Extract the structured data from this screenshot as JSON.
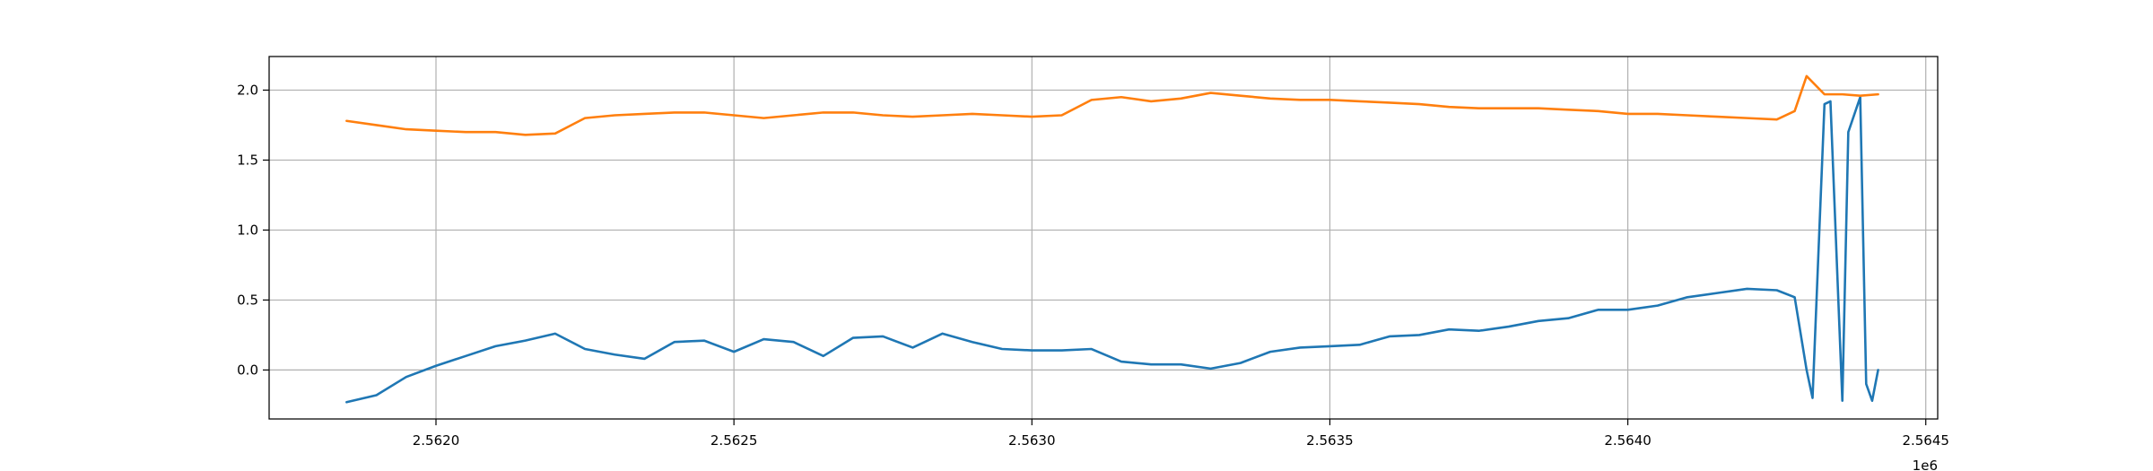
{
  "chart_data": {
    "type": "line",
    "title": "",
    "xlabel": "",
    "ylabel": "",
    "x_offset_label": "1e6",
    "xlim": [
      2.56172,
      2.56452
    ],
    "ylim": [
      -0.35,
      2.24
    ],
    "x_ticks": [
      2.562,
      2.5625,
      2.563,
      2.5635,
      2.564,
      2.5645
    ],
    "x_tick_labels": [
      "2.5620",
      "2.5625",
      "2.5630",
      "2.5635",
      "2.5640",
      "2.5645"
    ],
    "y_ticks": [
      0.0,
      0.5,
      1.0,
      1.5,
      2.0
    ],
    "y_tick_labels": [
      "0.0",
      "0.5",
      "1.0",
      "1.5",
      "2.0"
    ],
    "grid": true,
    "legend": "none",
    "series": [
      {
        "color": "#1f77b4",
        "x": [
          2.56185,
          2.5619,
          2.56195,
          2.562,
          2.56205,
          2.5621,
          2.56215,
          2.5622,
          2.56225,
          2.5623,
          2.56235,
          2.5624,
          2.56245,
          2.5625,
          2.56255,
          2.5626,
          2.56265,
          2.5627,
          2.56275,
          2.5628,
          2.56285,
          2.5629,
          2.56295,
          2.563,
          2.56305,
          2.5631,
          2.56315,
          2.5632,
          2.56325,
          2.5633,
          2.56335,
          2.5634,
          2.56345,
          2.5635,
          2.56355,
          2.5636,
          2.56365,
          2.5637,
          2.56375,
          2.5638,
          2.56385,
          2.5639,
          2.56395,
          2.564,
          2.56405,
          2.5641,
          2.56415,
          2.5642,
          2.56425,
          2.56428,
          2.5643,
          2.56431,
          2.56433,
          2.56434,
          2.56436,
          2.56437,
          2.56439,
          2.5644,
          2.56441,
          2.56442
        ],
        "y": [
          -0.23,
          -0.18,
          -0.05,
          0.03,
          0.1,
          0.17,
          0.21,
          0.26,
          0.15,
          0.11,
          0.08,
          0.2,
          0.21,
          0.13,
          0.22,
          0.2,
          0.1,
          0.23,
          0.24,
          0.16,
          0.26,
          0.2,
          0.15,
          0.14,
          0.14,
          0.15,
          0.06,
          0.04,
          0.04,
          0.01,
          0.05,
          0.13,
          0.16,
          0.17,
          0.18,
          0.24,
          0.25,
          0.29,
          0.28,
          0.31,
          0.35,
          0.37,
          0.43,
          0.43,
          0.46,
          0.52,
          0.55,
          0.58,
          0.57,
          0.52,
          0.0,
          -0.2,
          1.9,
          1.92,
          -0.22,
          1.7,
          1.95,
          -0.1,
          -0.22,
          0.0
        ]
      },
      {
        "color": "#ff7f0e",
        "x": [
          2.56185,
          2.5619,
          2.56195,
          2.562,
          2.56205,
          2.5621,
          2.56215,
          2.5622,
          2.56225,
          2.5623,
          2.56235,
          2.5624,
          2.56245,
          2.5625,
          2.56255,
          2.5626,
          2.56265,
          2.5627,
          2.56275,
          2.5628,
          2.56285,
          2.5629,
          2.56295,
          2.563,
          2.56305,
          2.5631,
          2.56315,
          2.5632,
          2.56325,
          2.5633,
          2.56335,
          2.5634,
          2.56345,
          2.5635,
          2.56355,
          2.5636,
          2.56365,
          2.5637,
          2.56375,
          2.5638,
          2.56385,
          2.5639,
          2.56395,
          2.564,
          2.56405,
          2.5641,
          2.56415,
          2.5642,
          2.56425,
          2.56428,
          2.5643,
          2.56433,
          2.56436,
          2.56439,
          2.56442
        ],
        "y": [
          1.78,
          1.75,
          1.72,
          1.71,
          1.7,
          1.7,
          1.68,
          1.69,
          1.8,
          1.82,
          1.83,
          1.84,
          1.84,
          1.82,
          1.8,
          1.82,
          1.84,
          1.84,
          1.82,
          1.81,
          1.82,
          1.83,
          1.82,
          1.81,
          1.82,
          1.93,
          1.95,
          1.92,
          1.94,
          1.98,
          1.96,
          1.94,
          1.93,
          1.93,
          1.92,
          1.91,
          1.9,
          1.88,
          1.87,
          1.87,
          1.87,
          1.86,
          1.85,
          1.83,
          1.83,
          1.82,
          1.81,
          1.8,
          1.79,
          1.85,
          2.1,
          1.97,
          1.97,
          1.96,
          1.97
        ]
      }
    ]
  }
}
